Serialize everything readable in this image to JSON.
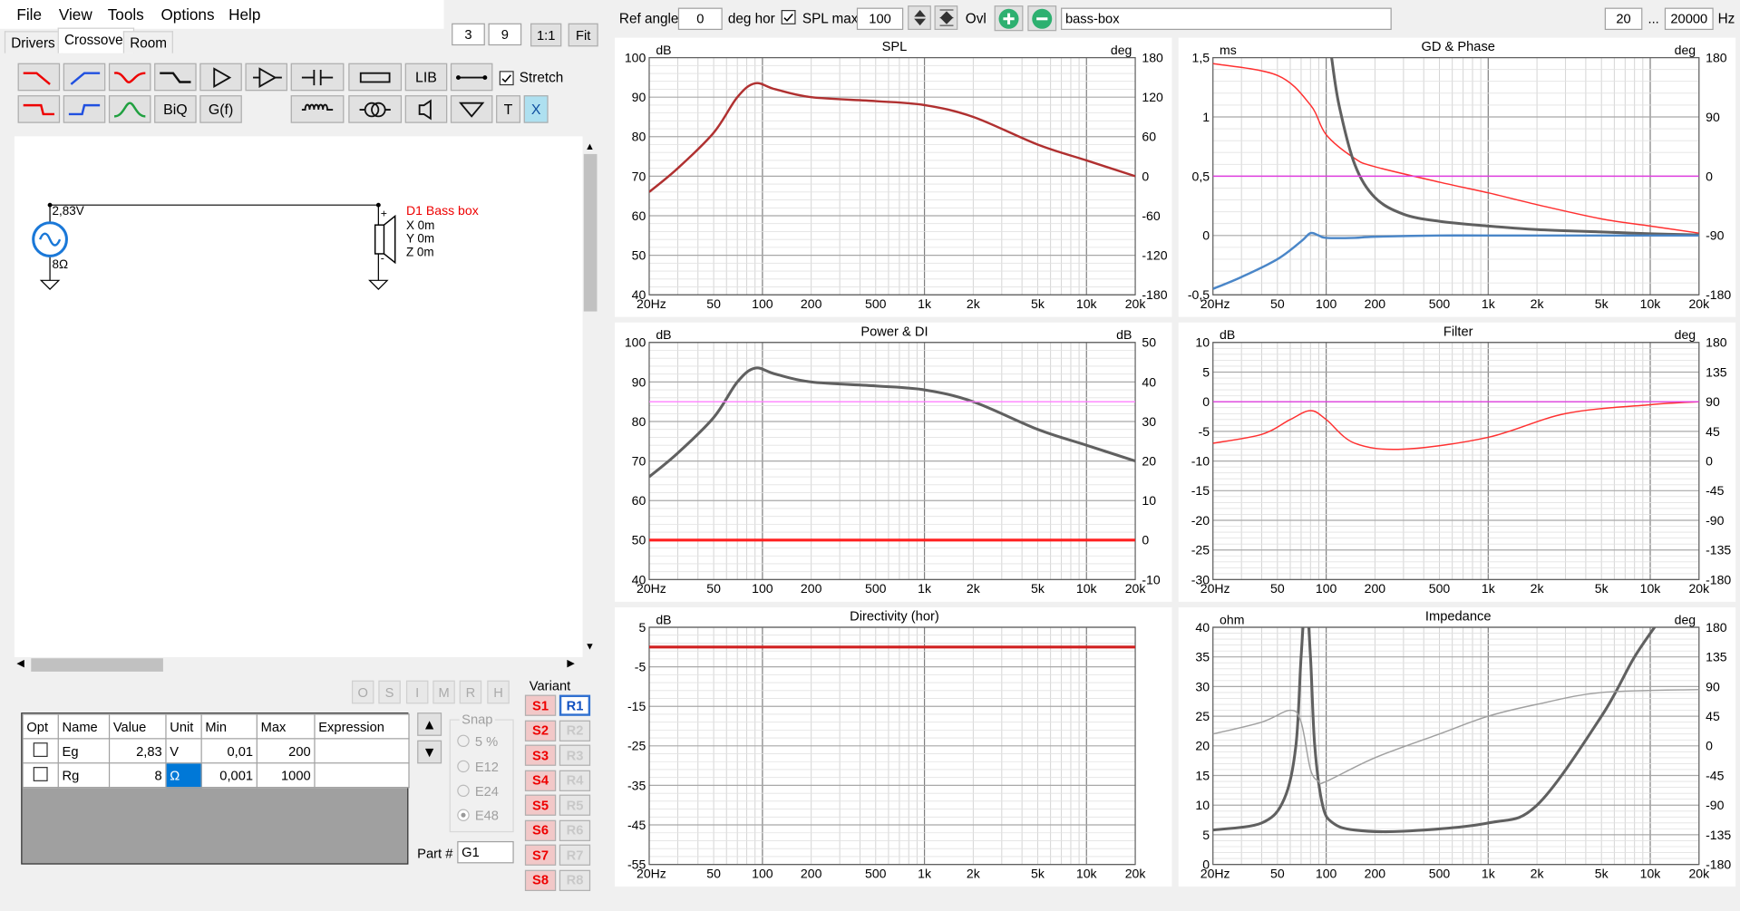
{
  "menu": {
    "file": "File",
    "view": "View",
    "tools": "Tools",
    "options": "Options",
    "help": "Help"
  },
  "tabs": {
    "drivers": "Drivers",
    "crossover": "Crossover",
    "room": "Room"
  },
  "view_controls": {
    "v1": "3",
    "v2": "9",
    "one": "1:1",
    "fit": "Fit"
  },
  "toolbar": {
    "lib": "LIB",
    "biq": "BiQ",
    "gf": "G(f)",
    "t": "T",
    "x": "X",
    "stretch": "Stretch"
  },
  "schematic": {
    "voltage": "2,83V",
    "resistance": "8Ω",
    "driver_name": "D1 Bass box",
    "x": "X 0m",
    "y": "Y 0m",
    "z": "Z 0m",
    "plus": "+",
    "minus": "-"
  },
  "opt_buttons": [
    "O",
    "S",
    "I",
    "M",
    "R",
    "H"
  ],
  "table": {
    "headers": [
      "Opt",
      "Name",
      "Value",
      "Unit",
      "Min",
      "Max",
      "Expression"
    ],
    "rows": [
      {
        "name": "Eg",
        "value": "2,83",
        "unit": "V",
        "min": "0,01",
        "max": "200",
        "expr": ""
      },
      {
        "name": "Rg",
        "value": "8",
        "unit": "Ω",
        "min": "0,001",
        "max": "1000",
        "expr": ""
      }
    ]
  },
  "snap": {
    "title": "Snap",
    "options": [
      "5 %",
      "E12",
      "E24",
      "E48"
    ],
    "selected": "E48"
  },
  "part": {
    "label": "Part #",
    "value": "G1"
  },
  "variant": {
    "title": "Variant",
    "s": [
      "S1",
      "S2",
      "S3",
      "S4",
      "S5",
      "S6",
      "S7",
      "S8"
    ],
    "r": [
      "R1",
      "R2",
      "R3",
      "R4",
      "R5",
      "R6",
      "R7",
      "R8"
    ],
    "active": "R1"
  },
  "top": {
    "ref_angle_label": "Ref angle",
    "ref_angle": "0",
    "deg_hor": "deg hor",
    "spl_max_label": "SPL max",
    "spl_max": "100",
    "ovl": "Ovl",
    "project": "bass-box",
    "f_min": "20",
    "ellipsis": "...",
    "f_max": "20000",
    "hz": "Hz"
  },
  "freq_ticks": [
    "20Hz",
    "50",
    "100",
    "200",
    "500",
    "1k",
    "2k",
    "5k",
    "10k",
    "20k"
  ],
  "chart_data": [
    {
      "type": "line",
      "title": "SPL",
      "ylabel": "dB",
      "y2label": "deg",
      "ylim": [
        40,
        100
      ],
      "y_ticks": [
        "100",
        "90",
        "80",
        "70",
        "60",
        "50",
        "40"
      ],
      "y2_ticks": [
        "180",
        "120",
        "60",
        "0",
        "-60",
        "-120",
        "-180"
      ],
      "xlim": [
        20,
        20000
      ],
      "series": [
        {
          "color": "#b03030",
          "x": [
            20,
            30,
            50,
            70,
            90,
            120,
            200,
            500,
            1000,
            2000,
            5000,
            10000,
            20000
          ],
          "y": [
            66,
            72,
            81,
            90,
            93.5,
            92,
            90,
            89,
            88,
            85,
            78,
            74,
            70
          ]
        }
      ]
    },
    {
      "type": "line",
      "title": "GD & Phase",
      "ylabel": "ms",
      "y2label": "deg",
      "ylim": [
        -0.5,
        1.5
      ],
      "y_ticks": [
        "1,5",
        "1",
        "0,5",
        "0",
        "-0,5"
      ],
      "y2_ticks": [
        "180",
        "90",
        "0",
        "-90",
        "-180"
      ],
      "xlim": [
        20,
        20000
      ],
      "series": [
        {
          "color": "#ff3030",
          "x": [
            20,
            50,
            80,
            100,
            150,
            200,
            500,
            1000,
            2000,
            5000,
            10000,
            20000
          ],
          "y": [
            1.45,
            1.35,
            1.1,
            0.85,
            0.65,
            0.58,
            0.45,
            0.36,
            0.26,
            0.14,
            0.08,
            0.02
          ]
        },
        {
          "color": "#606060",
          "x": [
            108,
            120,
            150,
            200,
            300,
            500,
            1000,
            2000,
            5000,
            10000,
            20000
          ],
          "y": [
            1.5,
            1.1,
            0.6,
            0.32,
            0.18,
            0.12,
            0.08,
            0.05,
            0.03,
            0.015,
            0.005
          ]
        },
        {
          "color": "#4a86c8",
          "x": [
            20,
            30,
            50,
            70,
            80,
            90,
            100,
            150,
            200,
            500,
            1000,
            5000,
            20000
          ],
          "y": [
            -0.45,
            -0.35,
            -0.2,
            -0.05,
            0.02,
            0.0,
            -0.02,
            -0.02,
            -0.01,
            0.0,
            0.0,
            0.0,
            0.0
          ]
        },
        {
          "color": "#e040e0",
          "x": [
            20,
            20000
          ],
          "y": [
            0.5,
            0.5
          ]
        }
      ]
    },
    {
      "type": "line",
      "title": "Power & DI",
      "ylabel": "dB",
      "y2label": "dB",
      "ylim": [
        40,
        100
      ],
      "y_ticks": [
        "100",
        "90",
        "80",
        "70",
        "60",
        "50",
        "40"
      ],
      "y2_ticks": [
        "50",
        "40",
        "30",
        "20",
        "10",
        "0",
        "-10"
      ],
      "xlim": [
        20,
        20000
      ],
      "series": [
        {
          "color": "#606060",
          "x": [
            20,
            30,
            50,
            70,
            90,
            120,
            200,
            500,
            1000,
            2000,
            5000,
            10000,
            20000
          ],
          "y": [
            66,
            72,
            81,
            90,
            93.5,
            92,
            90,
            89,
            88,
            85,
            78,
            74,
            70
          ]
        },
        {
          "color": "#ff80ff",
          "x": [
            20,
            20000
          ],
          "y": [
            85,
            85
          ]
        },
        {
          "color": "#ff2020",
          "x": [
            20,
            20000
          ],
          "y": [
            50,
            50
          ]
        }
      ]
    },
    {
      "type": "line",
      "title": "Filter",
      "ylabel": "dB",
      "y2label": "deg",
      "ylim": [
        -30,
        10
      ],
      "y_ticks": [
        "10",
        "5",
        "0",
        "-5",
        "-10",
        "-15",
        "-20",
        "-25",
        "-30"
      ],
      "y2_ticks": [
        "180",
        "135",
        "90",
        "45",
        "0",
        "-45",
        "-90",
        "-135",
        "-180"
      ],
      "xlim": [
        20,
        20000
      ],
      "series": [
        {
          "color": "#ff3030",
          "x": [
            20,
            40,
            60,
            80,
            100,
            150,
            300,
            1000,
            3000,
            10000,
            20000
          ],
          "y": [
            -7,
            -5.5,
            -3,
            -1.5,
            -3,
            -7,
            -8,
            -6,
            -2,
            -0.5,
            0
          ]
        },
        {
          "color": "#e040e0",
          "x": [
            20,
            20000
          ],
          "y": [
            0,
            0
          ]
        }
      ]
    },
    {
      "type": "line",
      "title": "Directivity (hor)",
      "ylabel": "dB",
      "ylim": [
        -55,
        5
      ],
      "y_ticks": [
        "5",
        "-5",
        "-15",
        "-25",
        "-35",
        "-45",
        "-55"
      ],
      "xlim": [
        20,
        20000
      ],
      "series": [
        {
          "color": "#d02020",
          "x": [
            20,
            20000
          ],
          "y": [
            0,
            0
          ]
        }
      ]
    },
    {
      "type": "line",
      "title": "Impedance",
      "ylabel": "ohm",
      "y2label": "deg",
      "ylim": [
        0,
        40
      ],
      "y_ticks": [
        "40",
        "35",
        "30",
        "25",
        "20",
        "15",
        "10",
        "5",
        "0"
      ],
      "y2_ticks": [
        "180",
        "135",
        "90",
        "45",
        "0",
        "-45",
        "-90",
        "-135",
        "-180"
      ],
      "xlim": [
        20,
        20000
      ],
      "series": [
        {
          "color": "#606060",
          "x": [
            20,
            40,
            55,
            65,
            70,
            75,
            80,
            85,
            95,
            110,
            150,
            300,
            1000,
            2000,
            5000,
            8000,
            12000
          ],
          "y": [
            5.8,
            7,
            11,
            20,
            35,
            45,
            35,
            20,
            10,
            7,
            5.8,
            5.6,
            7,
            10,
            25,
            35,
            42
          ]
        },
        {
          "color": "#a0a0a0",
          "x": [
            20,
            40,
            60,
            70,
            80,
            90,
            100,
            200,
            500,
            1000,
            2000,
            5000,
            20000
          ],
          "y": [
            22,
            24,
            26,
            24,
            16,
            14,
            14,
            18,
            22,
            25,
            27,
            29,
            29.5
          ]
        }
      ]
    }
  ]
}
